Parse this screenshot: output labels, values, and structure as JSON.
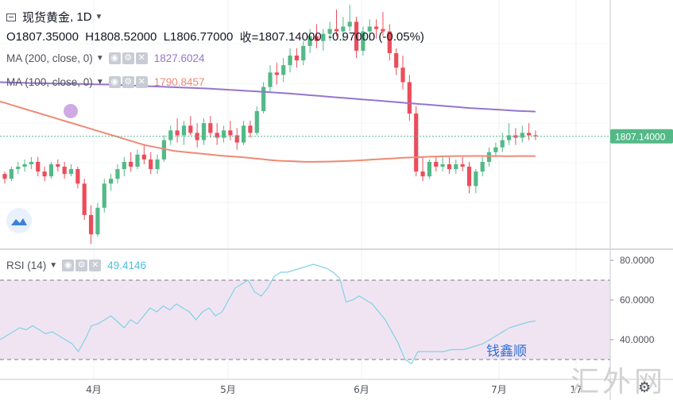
{
  "header": {
    "symbol": "现货黄金",
    "separator": ",",
    "interval": "1D",
    "open_label": "O",
    "open": "1807.35000",
    "high_label": "H",
    "high": "1808.52000",
    "low_label": "L",
    "low": "1806.77000",
    "close_label": "收=",
    "close": "1807.14000",
    "change": "-0.97000",
    "change_pct": "(-0.05%)"
  },
  "indicators": {
    "ma200": {
      "label": "MA (200, close, 0)",
      "value": "1827.6024",
      "color": "#9575cd"
    },
    "ma100": {
      "label": "MA (100, close, 0)",
      "value": "1790.8457",
      "color": "#ef8a75"
    },
    "rsi": {
      "label": "RSI (14)",
      "value": "49.4146",
      "color": "#7fd3e6"
    }
  },
  "price_axis": {
    "current_price_label": "1807.14000",
    "badge_color": "#53b987"
  },
  "rsi_axis": {
    "ticks": [
      "80.0000",
      "60.0000",
      "40.0000"
    ],
    "band": [
      30,
      70
    ],
    "range": [
      20,
      84
    ]
  },
  "time_axis": {
    "labels": [
      "4月",
      "5月",
      "6月",
      "7月",
      "17"
    ]
  },
  "watermarks": {
    "cn_text": "钱鑫顺",
    "site": "汇外网"
  },
  "colors": {
    "up": "#53b987",
    "down": "#eb4d5c",
    "rsi_band_fill": "#f1e4f2"
  },
  "chart_data": [
    {
      "type": "candlestick",
      "title": "现货黄金, 1D",
      "price_range": [
        1715,
        1920
      ],
      "current_price": 1807.14,
      "series": [
        {
          "name": "MA (200, close, 0)",
          "type": "line",
          "values": [
            1852,
            1851.8,
            1851.6,
            1851.5,
            1851.4,
            1851.3,
            1851.2,
            1851.1,
            1851,
            1850.9,
            1850.8,
            1850.7,
            1850.6,
            1850.5,
            1850.4,
            1850.3,
            1850.2,
            1850.1,
            1850,
            1849.8,
            1849.6,
            1849.4,
            1849.2,
            1849,
            1848.8,
            1848.6,
            1848.4,
            1848.2,
            1848,
            1847.8,
            1847.6,
            1847.4,
            1847.2,
            1847,
            1846.8,
            1846.6,
            1846.3,
            1846,
            1845.7,
            1845.4,
            1845.1,
            1844.8,
            1844.5,
            1844.2,
            1843.9,
            1843.6,
            1843.3,
            1843,
            1842.6,
            1842.2,
            1841.8,
            1841.4,
            1841,
            1840.6,
            1840.2,
            1839.8,
            1839.4,
            1839,
            1838.6,
            1838.2,
            1837.8,
            1837.4,
            1837,
            1836.6,
            1836.2,
            1835.8,
            1835.4,
            1835,
            1834.6,
            1834.2,
            1833.8,
            1833.4,
            1833,
            1832.6,
            1832.2,
            1831.8,
            1831.4,
            1831,
            1830.6,
            1830.3,
            1830,
            1829.7,
            1829.4,
            1829.1,
            1828.8,
            1828.5,
            1828.2,
            1828,
            1827.8,
            1827.6
          ]
        },
        {
          "name": "MA (100, close, 0)",
          "type": "line",
          "values": [
            1836,
            1834.5,
            1833,
            1831.5,
            1830,
            1828.5,
            1827,
            1825.5,
            1824,
            1822.5,
            1821,
            1819.5,
            1818,
            1816.5,
            1815,
            1813.5,
            1812,
            1810.5,
            1809,
            1807.5,
            1806,
            1804.5,
            1803,
            1801.5,
            1800,
            1799,
            1798,
            1797,
            1796,
            1795,
            1794.5,
            1794,
            1793.5,
            1793,
            1792.5,
            1792,
            1791.5,
            1791,
            1790.6,
            1790.3,
            1790,
            1789.5,
            1789,
            1788.5,
            1788,
            1787.5,
            1787,
            1786.8,
            1786.6,
            1786.4,
            1786.2,
            1786,
            1786,
            1786.1,
            1786.2,
            1786.3,
            1786.4,
            1786.6,
            1786.8,
            1787,
            1787.3,
            1787.6,
            1787.9,
            1788.2,
            1788.5,
            1788.8,
            1789.1,
            1789.4,
            1789.6,
            1789.8,
            1790,
            1790.2,
            1790.4,
            1790.5,
            1790.6,
            1790.7,
            1790.8,
            1790.8,
            1790.8,
            1790.9,
            1790.9,
            1790.8,
            1790.8,
            1790.8,
            1790.7,
            1790.7,
            1790.8,
            1790.8,
            1790.8,
            1790.85
          ]
        },
        {
          "name": "RSI (14)",
          "type": "line",
          "range": [
            20,
            84
          ],
          "values": [
            40,
            42,
            44,
            46,
            45,
            47,
            45,
            43,
            44,
            42,
            40,
            38,
            34,
            40,
            47,
            48,
            50,
            52,
            49,
            46,
            50,
            48,
            52,
            56,
            54,
            57,
            55,
            58,
            56,
            54,
            50,
            54,
            56,
            52,
            54,
            60,
            66,
            68,
            70,
            64,
            62,
            66,
            72,
            74,
            74,
            75,
            76,
            77,
            78,
            77,
            76,
            74,
            71,
            59,
            60,
            62,
            60,
            58,
            54,
            50,
            44,
            38,
            30,
            28,
            34,
            34,
            34,
            34,
            34,
            35,
            35,
            35,
            36,
            37,
            38,
            40,
            42,
            44,
            46,
            47,
            48,
            49,
            49.4
          ]
        }
      ],
      "candles": [
        [
          1776,
          1778,
          1768,
          1772
        ],
        [
          1772,
          1782,
          1770,
          1780
        ],
        [
          1780,
          1786,
          1776,
          1782
        ],
        [
          1782,
          1788,
          1778,
          1784
        ],
        [
          1784,
          1790,
          1780,
          1786
        ],
        [
          1786,
          1790,
          1774,
          1778
        ],
        [
          1778,
          1782,
          1770,
          1774
        ],
        [
          1774,
          1786,
          1772,
          1784
        ],
        [
          1784,
          1788,
          1778,
          1782
        ],
        [
          1782,
          1786,
          1772,
          1776
        ],
        [
          1776,
          1784,
          1774,
          1780
        ],
        [
          1780,
          1782,
          1764,
          1768
        ],
        [
          1768,
          1772,
          1738,
          1742
        ],
        [
          1742,
          1750,
          1718,
          1726
        ],
        [
          1726,
          1752,
          1724,
          1748
        ],
        [
          1748,
          1772,
          1744,
          1768
        ],
        [
          1768,
          1776,
          1762,
          1772
        ],
        [
          1772,
          1784,
          1768,
          1780
        ],
        [
          1780,
          1790,
          1774,
          1786
        ],
        [
          1786,
          1794,
          1778,
          1782
        ],
        [
          1782,
          1796,
          1780,
          1792
        ],
        [
          1792,
          1800,
          1784,
          1788
        ],
        [
          1788,
          1794,
          1776,
          1780
        ],
        [
          1780,
          1792,
          1776,
          1788
        ],
        [
          1788,
          1808,
          1786,
          1804
        ],
        [
          1804,
          1816,
          1800,
          1812
        ],
        [
          1812,
          1822,
          1802,
          1808
        ],
        [
          1808,
          1820,
          1800,
          1816
        ],
        [
          1816,
          1824,
          1808,
          1810
        ],
        [
          1810,
          1818,
          1798,
          1804
        ],
        [
          1804,
          1822,
          1800,
          1818
        ],
        [
          1818,
          1824,
          1806,
          1810
        ],
        [
          1810,
          1818,
          1800,
          1806
        ],
        [
          1806,
          1816,
          1802,
          1812
        ],
        [
          1812,
          1820,
          1804,
          1808
        ],
        [
          1808,
          1814,
          1796,
          1802
        ],
        [
          1802,
          1820,
          1800,
          1816
        ],
        [
          1816,
          1820,
          1806,
          1810
        ],
        [
          1810,
          1832,
          1808,
          1828
        ],
        [
          1828,
          1852,
          1826,
          1848
        ],
        [
          1848,
          1866,
          1844,
          1860
        ],
        [
          1860,
          1868,
          1850,
          1858
        ],
        [
          1858,
          1872,
          1852,
          1866
        ],
        [
          1866,
          1880,
          1860,
          1874
        ],
        [
          1874,
          1880,
          1864,
          1870
        ],
        [
          1870,
          1886,
          1866,
          1882
        ],
        [
          1882,
          1896,
          1876,
          1890
        ],
        [
          1890,
          1900,
          1880,
          1886
        ],
        [
          1886,
          1896,
          1878,
          1892
        ],
        [
          1892,
          1902,
          1886,
          1896
        ],
        [
          1896,
          1912,
          1890,
          1894
        ],
        [
          1894,
          1906,
          1886,
          1898
        ],
        [
          1898,
          1916,
          1894,
          1902
        ],
        [
          1902,
          1906,
          1872,
          1878
        ],
        [
          1878,
          1898,
          1874,
          1894
        ],
        [
          1894,
          1904,
          1886,
          1898
        ],
        [
          1898,
          1904,
          1888,
          1896
        ],
        [
          1896,
          1910,
          1890,
          1894
        ],
        [
          1894,
          1900,
          1870,
          1876
        ],
        [
          1876,
          1880,
          1858,
          1864
        ],
        [
          1864,
          1874,
          1846,
          1852
        ],
        [
          1852,
          1858,
          1820,
          1826
        ],
        [
          1826,
          1832,
          1774,
          1778
        ],
        [
          1778,
          1790,
          1770,
          1774
        ],
        [
          1774,
          1788,
          1772,
          1786
        ],
        [
          1786,
          1790,
          1778,
          1782
        ],
        [
          1782,
          1790,
          1778,
          1784
        ],
        [
          1784,
          1790,
          1776,
          1780
        ],
        [
          1780,
          1788,
          1776,
          1784
        ],
        [
          1784,
          1790,
          1778,
          1782
        ],
        [
          1782,
          1786,
          1760,
          1766
        ],
        [
          1766,
          1780,
          1760,
          1778
        ],
        [
          1778,
          1790,
          1774,
          1786
        ],
        [
          1786,
          1798,
          1782,
          1794
        ],
        [
          1794,
          1802,
          1790,
          1798
        ],
        [
          1798,
          1810,
          1794,
          1804
        ],
        [
          1804,
          1818,
          1800,
          1808
        ],
        [
          1808,
          1814,
          1800,
          1806
        ],
        [
          1806,
          1816,
          1802,
          1810
        ],
        [
          1810,
          1818,
          1804,
          1808
        ],
        [
          1808,
          1812,
          1804,
          1807.14
        ]
      ]
    }
  ]
}
